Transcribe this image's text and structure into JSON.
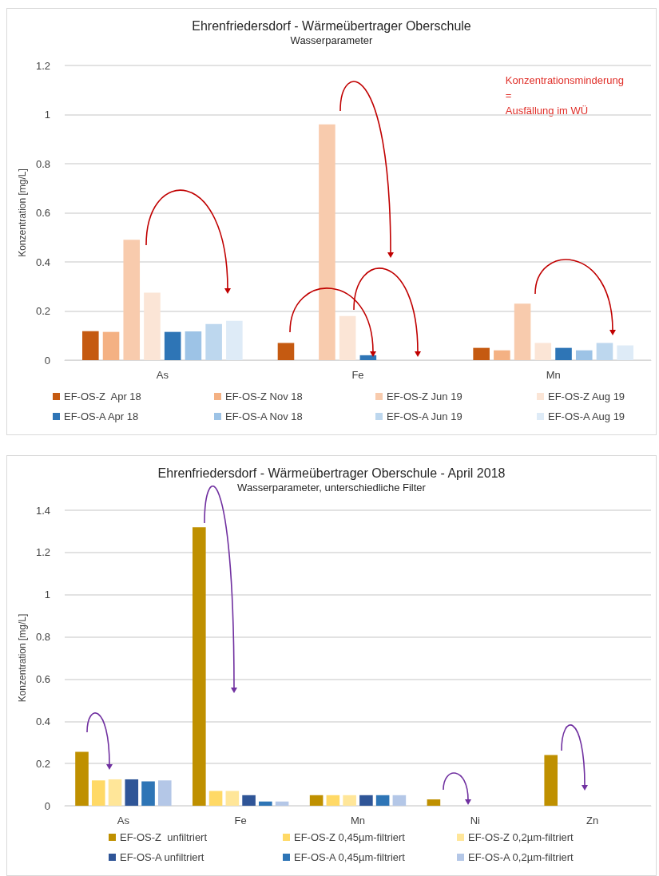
{
  "chart_data": [
    {
      "type": "bar",
      "title": "Ehrenfriedersdorf - Wärmeübertrager Oberschule",
      "subtitle": "Wasserparameter",
      "ylabel": "Konzentration [mg/L]",
      "categories": [
        "As",
        "Fe",
        "Mn"
      ],
      "series": [
        {
          "name": "EF-OS-Z  Apr 18",
          "color": "#c55a11",
          "values": [
            0.118,
            0.07,
            0.05
          ]
        },
        {
          "name": "EF-OS-Z Nov 18",
          "color": "#f4b183",
          "values": [
            0.115,
            null,
            0.04
          ]
        },
        {
          "name": "EF-OS-Z Jun 19",
          "color": "#f8cbad",
          "values": [
            0.49,
            0.96,
            0.23
          ]
        },
        {
          "name": "EF-OS-Z Aug 19",
          "color": "#fbe5d6",
          "values": [
            0.275,
            0.18,
            0.07
          ]
        },
        {
          "name": "EF-OS-A Apr 18",
          "color": "#2e75b6",
          "values": [
            0.115,
            0.02,
            0.05
          ]
        },
        {
          "name": "EF-OS-A Nov 18",
          "color": "#9dc3e6",
          "values": [
            0.117,
            null,
            0.04
          ]
        },
        {
          "name": "EF-OS-A Jun 19",
          "color": "#bdd7ee",
          "values": [
            0.147,
            null,
            0.07
          ]
        },
        {
          "name": "EF-OS-A Aug 19",
          "color": "#deebf7",
          "values": [
            0.16,
            null,
            0.06
          ]
        }
      ],
      "ylim": [
        0,
        1.2
      ],
      "yticks": [
        0,
        0.2,
        0.4,
        0.6,
        0.8,
        1,
        1.2
      ],
      "grid": "y",
      "legend": "bottom",
      "annotations": [
        "Konzentrationsminderung\n=\nAusfällung im WÜ"
      ]
    },
    {
      "type": "bar",
      "title": "Ehrenfriedersdorf - Wärmeübertrager Oberschule - April 2018",
      "subtitle": "Wasserparameter, unterschiedliche Filter",
      "ylabel": "Konzentration [mg/L]",
      "categories": [
        "As",
        "Fe",
        "Mn",
        "Ni",
        "Zn"
      ],
      "series": [
        {
          "name": "EF-OS-Z  unfiltriert",
          "color": "#bf9000",
          "values": [
            0.255,
            1.32,
            0.05,
            0.03,
            0.24
          ]
        },
        {
          "name": "EF-OS-Z 0,45µm-filtriert",
          "color": "#ffd966",
          "values": [
            0.12,
            0.07,
            0.05,
            null,
            null
          ]
        },
        {
          "name": "EF-OS-Z 0,2µm-filtriert",
          "color": "#ffe699",
          "values": [
            0.125,
            0.07,
            0.05,
            null,
            null
          ]
        },
        {
          "name": "EF-OS-A unfiltriert",
          "color": "#2f5597",
          "values": [
            0.125,
            0.05,
            0.05,
            null,
            null
          ]
        },
        {
          "name": "EF-OS-A 0,45µm-filtriert",
          "color": "#2e75b6",
          "values": [
            0.115,
            0.02,
            0.05,
            null,
            null
          ]
        },
        {
          "name": "EF-OS-A 0,2µm-filtriert",
          "color": "#b4c7e7",
          "values": [
            0.12,
            0.02,
            0.05,
            null,
            null
          ]
        }
      ],
      "ylim": [
        0,
        1.4
      ],
      "yticks": [
        0,
        0.2,
        0.4,
        0.6,
        0.8,
        1,
        1.2,
        1.4
      ],
      "grid": "y",
      "legend": "bottom"
    }
  ]
}
